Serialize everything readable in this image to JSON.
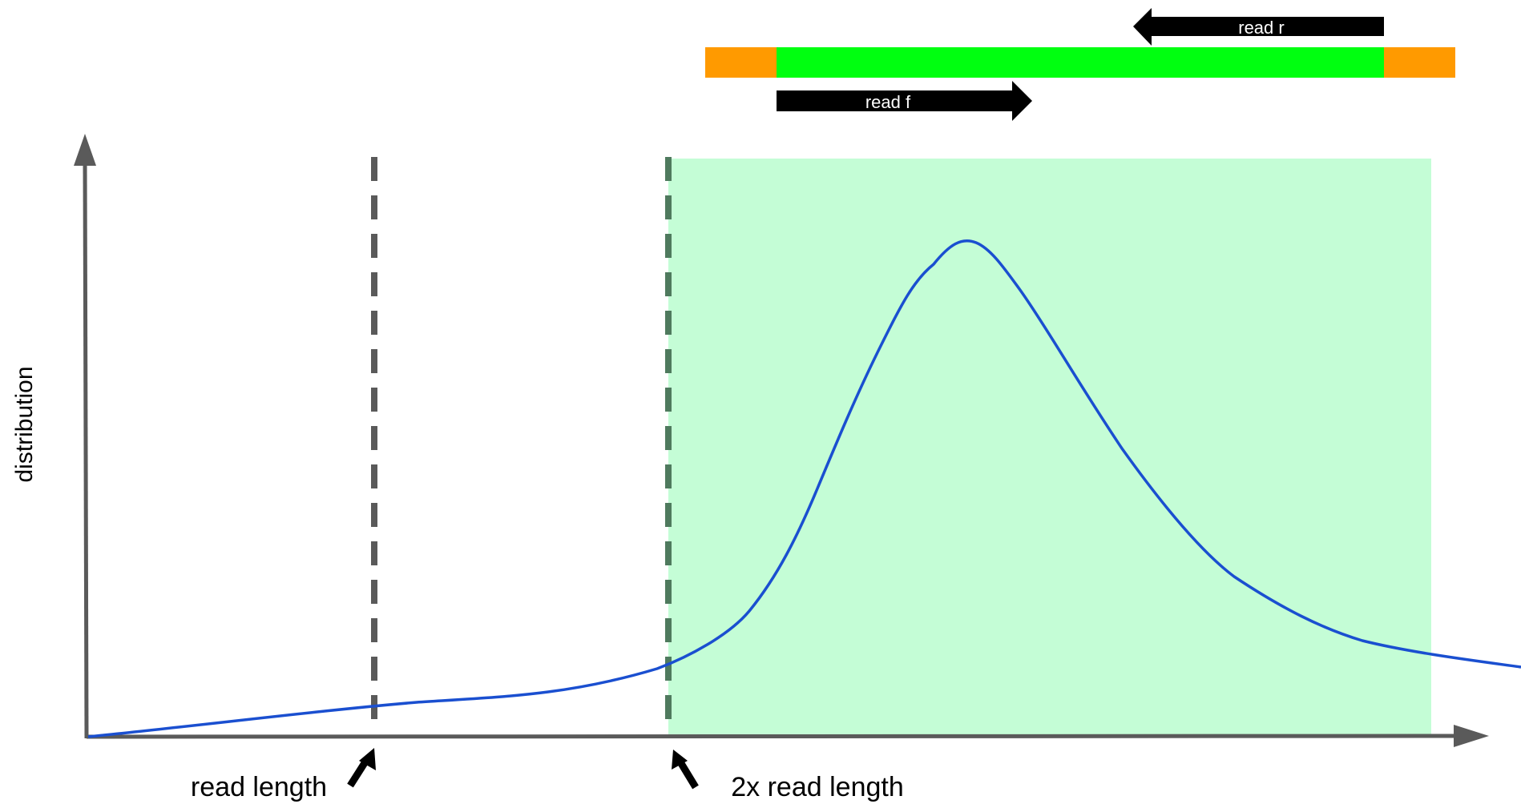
{
  "y_axis_label": "distribution",
  "marker_labels": {
    "read_length": "read length",
    "double_read_length": "2x read length"
  },
  "fragment": {
    "read_forward_label": "read f",
    "read_reverse_label": "read r"
  },
  "colors": {
    "background": "#ffffff",
    "axis": "#5a5a5a",
    "curve": "#1a4fd0",
    "shaded_region": "#c4fdd6",
    "insert": "#00ff10",
    "adapter": "#ff9a00",
    "read_arrow": "#000000",
    "read_label": "#ffffff",
    "pointer_arrow": "#000000"
  },
  "icons": {
    "axis_arrowhead": "triangle-arrowhead",
    "pointer": "thick-pointer-arrow",
    "read": "block-arrow"
  }
}
